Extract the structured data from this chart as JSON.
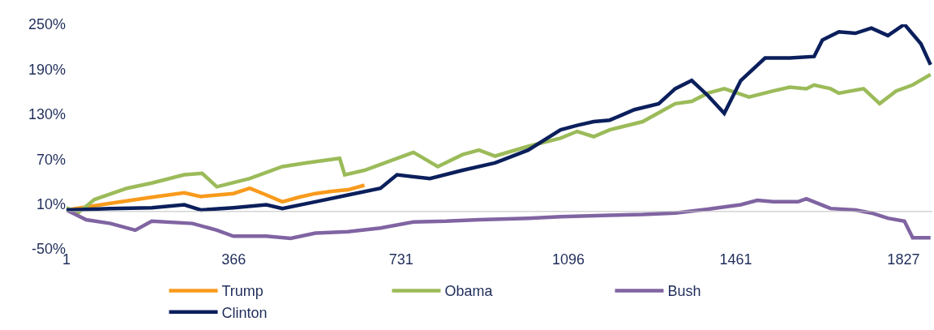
{
  "chart_data": {
    "type": "line",
    "xlim": [
      1,
      1890
    ],
    "xticks": [
      1,
      366,
      731,
      1096,
      1461,
      1827
    ],
    "ylim": [
      -50,
      250
    ],
    "yticks": [
      {
        "value": -50,
        "label": "-50%"
      },
      {
        "value": 10,
        "label": "10%"
      },
      {
        "value": 70,
        "label": "70%"
      },
      {
        "value": 130,
        "label": "130%"
      },
      {
        "value": 190,
        "label": "190%"
      },
      {
        "value": 250,
        "label": "250%"
      }
    ],
    "grid": false,
    "legend": "bottom",
    "marker": "none",
    "line_style": "solid",
    "ref_lines": [
      {
        "axis": "y",
        "value": 0,
        "color": "#bfbfbf"
      }
    ],
    "series": [
      {
        "name": "Trump",
        "color": "#f99a1c",
        "x": [
          1,
          97,
          187,
          258,
          294,
          365,
          401,
          437,
          472,
          508,
          544,
          579,
          615,
          651
        ],
        "values": [
          2,
          11,
          19,
          25,
          20,
          24,
          31,
          22,
          13,
          19,
          24,
          27,
          29,
          35
        ]
      },
      {
        "name": "Obama",
        "color": "#9bbb59",
        "x": [
          1,
          26,
          62,
          133,
          187,
          258,
          297,
          329,
          401,
          472,
          526,
          597,
          608,
          651,
          722,
          758,
          811,
          865,
          901,
          936,
          1008,
          1079,
          1115,
          1151,
          1186,
          1258,
          1329,
          1365,
          1400,
          1436,
          1490,
          1543,
          1579,
          1615,
          1632,
          1668,
          1686,
          1740,
          1775,
          1811,
          1847,
          1886
        ],
        "values": [
          5,
          -2,
          16,
          31,
          38,
          49,
          51,
          33,
          44,
          60,
          65,
          71,
          49,
          55,
          71,
          79,
          60,
          76,
          82,
          74,
          87,
          98,
          107,
          100,
          109,
          120,
          144,
          147,
          158,
          164,
          153,
          161,
          166,
          164,
          169,
          164,
          158,
          164,
          144,
          161,
          169,
          183
        ]
      },
      {
        "name": "Bush",
        "color": "#8064a2",
        "x": [
          1,
          44,
          97,
          151,
          187,
          276,
          329,
          365,
          437,
          490,
          544,
          615,
          686,
          758,
          829,
          901,
          1008,
          1079,
          1186,
          1258,
          1329,
          1400,
          1472,
          1508,
          1543,
          1597,
          1615,
          1668,
          1722,
          1757,
          1793,
          1829,
          1847,
          1886
        ],
        "values": [
          2,
          -11,
          -16,
          -25,
          -13,
          -16,
          -25,
          -33,
          -33,
          -36,
          -29,
          -27,
          -22,
          -14,
          -13,
          -11,
          -9,
          -7,
          -5,
          -4,
          -2,
          3,
          9,
          15,
          13,
          13,
          17,
          4,
          2,
          -2,
          -9,
          -13,
          -35,
          -35
        ]
      },
      {
        "name": "Clinton",
        "color": "#0b1f5c",
        "x": [
          1,
          97,
          187,
          258,
          294,
          365,
          437,
          472,
          544,
          615,
          686,
          722,
          794,
          865,
          936,
          1008,
          1079,
          1115,
          1151,
          1186,
          1240,
          1293,
          1329,
          1365,
          1400,
          1436,
          1472,
          1525,
          1579,
          1632,
          1650,
          1686,
          1722,
          1757,
          1793,
          1829,
          1865,
          1886
        ],
        "values": [
          2,
          4,
          5,
          9,
          2,
          5,
          9,
          4,
          13,
          22,
          31,
          49,
          44,
          55,
          65,
          82,
          109,
          115,
          120,
          122,
          136,
          144,
          164,
          175,
          155,
          131,
          175,
          205,
          205,
          207,
          229,
          240,
          238,
          245,
          235,
          250,
          224,
          196
        ]
      }
    ]
  }
}
